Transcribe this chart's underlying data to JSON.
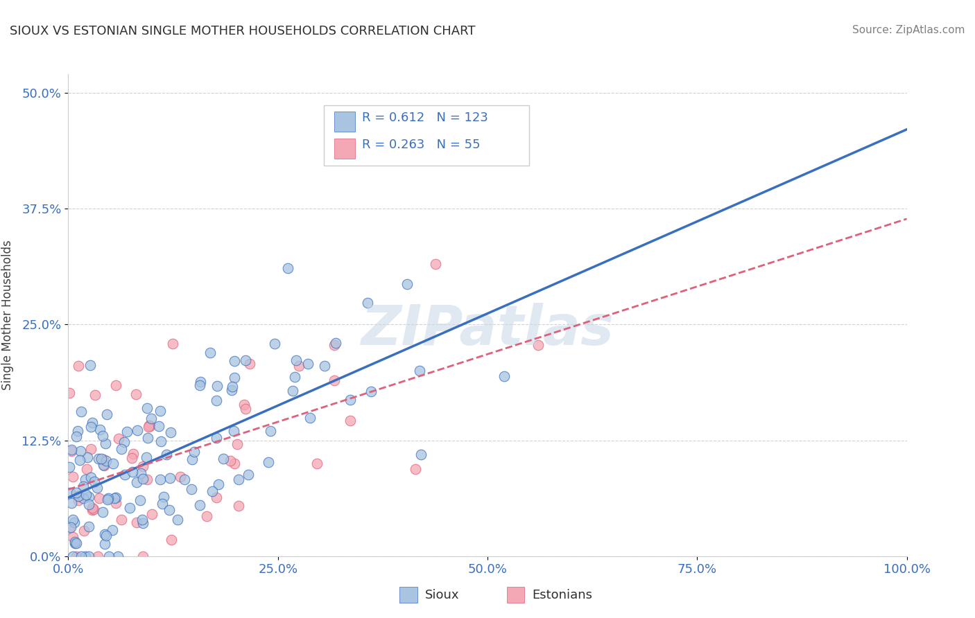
{
  "title": "SIOUX VS ESTONIAN SINGLE MOTHER HOUSEHOLDS CORRELATION CHART",
  "source": "Source: ZipAtlas.com",
  "ylabel": "Single Mother Households",
  "sioux_R": 0.612,
  "sioux_N": 123,
  "estonian_R": 0.263,
  "estonian_N": 55,
  "sioux_color": "#a8c4e0",
  "sioux_line_color": "#3a6fbf",
  "estonian_color": "#f4a7b5",
  "estonian_line_color": "#e0607a",
  "xlim": [
    0,
    100
  ],
  "ylim": [
    0,
    0.52
  ],
  "yticks": [
    0.0,
    0.125,
    0.25,
    0.375,
    0.5
  ],
  "ytick_labels": [
    "0.0%",
    "12.5%",
    "25.0%",
    "37.5%",
    "50.0%"
  ],
  "xticks": [
    0,
    25,
    50,
    75,
    100
  ],
  "xtick_labels": [
    "0.0%",
    "25.0%",
    "50.0%",
    "75.0%",
    "100.0%"
  ],
  "watermark": "ZIPatlas",
  "watermark_color": "#c8d8e8",
  "background_color": "#ffffff",
  "grid_color": "#cccccc",
  "title_color": "#303030",
  "source_color": "#808080",
  "legend_box_color_sioux": "#a8c4e0",
  "legend_box_color_estonian": "#f4a7b5",
  "legend_text_color": "#3a6fbf",
  "tick_color": "#3a6fbf",
  "legend_label_sioux": "Sioux",
  "legend_label_estonian": "Estonians"
}
